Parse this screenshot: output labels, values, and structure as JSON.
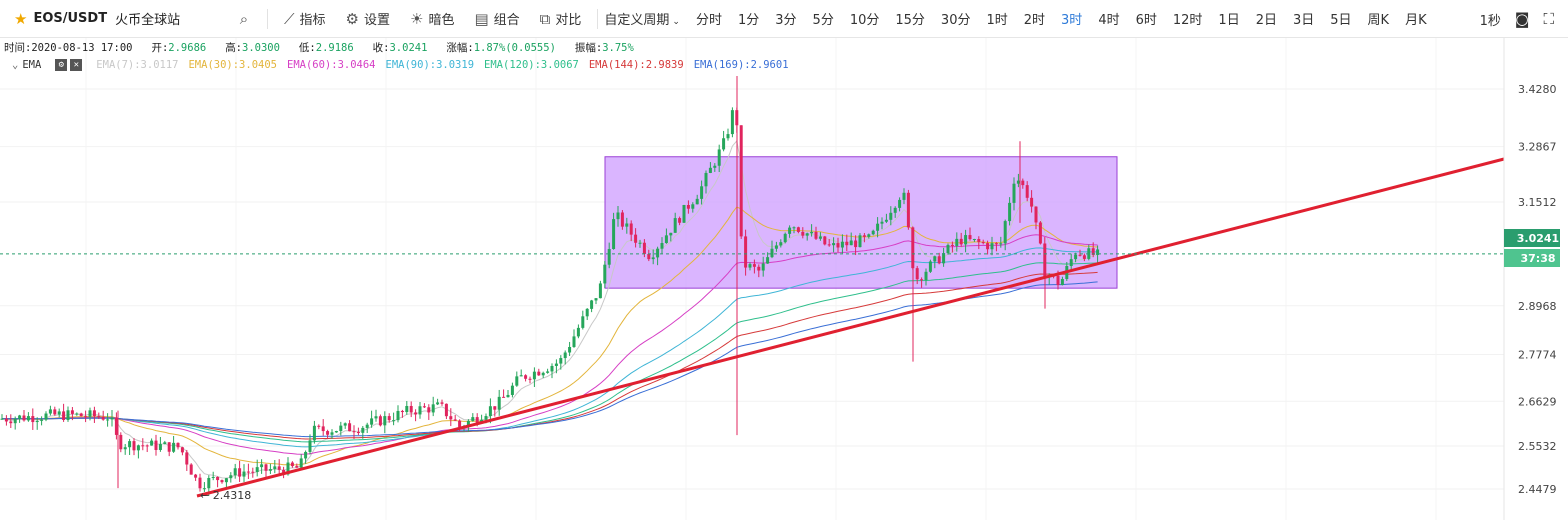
{
  "toolbar": {
    "symbol": "EOS/USDT",
    "exchange": "火币全球站",
    "buttons": [
      {
        "label": "指标",
        "icon": "indicator-icon"
      },
      {
        "label": "设置",
        "icon": "gear-icon"
      },
      {
        "label": "暗色",
        "icon": "sun-icon"
      },
      {
        "label": "组合",
        "icon": "layout-icon"
      },
      {
        "label": "对比",
        "icon": "compare-icon"
      }
    ],
    "custom_period": "自定义周期",
    "periods": [
      "分时",
      "1分",
      "3分",
      "5分",
      "10分",
      "15分",
      "30分",
      "1时",
      "2时",
      "3时",
      "4时",
      "6时",
      "12时",
      "1日",
      "2日",
      "3日",
      "5日",
      "周K",
      "月K"
    ],
    "active_period": "3时",
    "interval": "1秒"
  },
  "info": {
    "time_label": "时间:",
    "time": "2020-08-13 17:00",
    "open_label": "开:",
    "open": "2.9686",
    "high_label": "高:",
    "high": "3.0300",
    "low_label": "低:",
    "low": "2.9186",
    "close_label": "收:",
    "close": "3.0241",
    "change_label": "涨幅:",
    "change": "1.87%(0.0555)",
    "amp_label": "振幅:",
    "amp": "3.75%"
  },
  "ema": {
    "name": "EMA",
    "items": [
      {
        "label": "EMA(7):3.0117",
        "color": "#c8c8c8"
      },
      {
        "label": "EMA(30):3.0405",
        "color": "#e3b53c"
      },
      {
        "label": "EMA(60):3.0464",
        "color": "#d63fc5"
      },
      {
        "label": "EMA(90):3.0319",
        "color": "#3fb5d6"
      },
      {
        "label": "EMA(120):3.0067",
        "color": "#2fbf8c"
      },
      {
        "label": "EMA(144):2.9839",
        "color": "#d63a3a"
      },
      {
        "label": "EMA(169):2.9601",
        "color": "#3a6fd6"
      }
    ]
  },
  "chart_data": {
    "type": "candlestick",
    "y_ticks": [
      "3.4280",
      "3.2867",
      "3.1512",
      "2.8968",
      "2.7774",
      "2.6629",
      "2.5532",
      "2.4479"
    ],
    "ylim": [
      2.42,
      3.5
    ],
    "last_price": "3.0241",
    "countdown": "37:38",
    "low_annotation": "← 2.4318",
    "up_color": "#26a65b",
    "down_color": "#e0245e",
    "trendline_color": "#e02030",
    "range_box": {
      "top": 3.262,
      "bottom": 2.94,
      "fill": "#cc99ff"
    }
  }
}
